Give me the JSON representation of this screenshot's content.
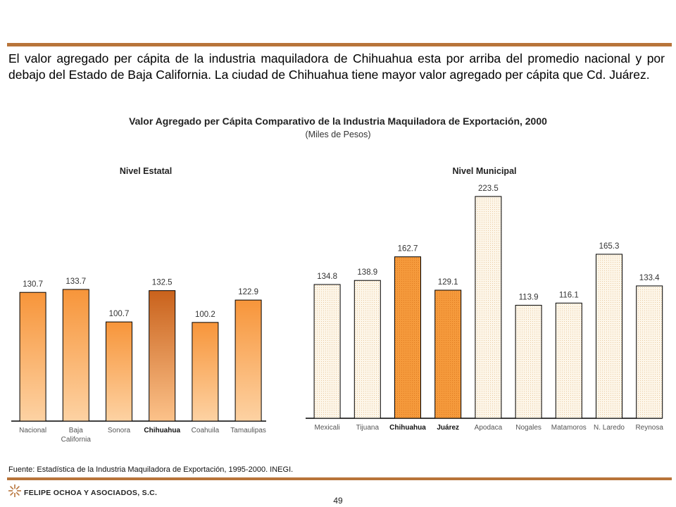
{
  "intro_text": "El valor agregado per cápita de la industria maquiladora de Chihuahua esta por arriba del promedio nacional y por debajo del Estado de Baja California. La ciudad de Chihuahua tiene mayor valor agregado per cápita que Cd. Juárez.",
  "chart_title": "Valor Agregado per Cápita Comparativo de la Industria Maquiladora de Exportación, 2000",
  "chart_subtitle": "(Miles de Pesos)",
  "source": "Fuente: Estadística de la Industria Maquiladora de Exportación, 1995-2000. INEGI.",
  "brand": "FELIPE OCHOA Y ASOCIADOS, S.C.",
  "page_number": "49",
  "colors": {
    "rule": "#b8743a",
    "bar_light": "#fcc990",
    "bar_dark": "#f59a3c",
    "bar_highlight": "#d2691e",
    "dotted_fill": "#fbf3e2"
  },
  "chart_data": [
    {
      "type": "bar",
      "title": "Nivel Estatal",
      "categories": [
        "Nacional",
        "Baja California",
        "Sonora",
        "Chihuahua",
        "Coahuila",
        "Tamaulipas"
      ],
      "category_lines": [
        [
          "Nacional"
        ],
        [
          "Baja",
          "California"
        ],
        [
          "Sonora"
        ],
        [
          "Chihuahua"
        ],
        [
          "Coahuila"
        ],
        [
          "Tamaulipas"
        ]
      ],
      "bold_categories": [
        "Chihuahua"
      ],
      "highlight": [
        "Chihuahua"
      ],
      "values": [
        130.7,
        133.7,
        100.7,
        132.5,
        100.2,
        122.9
      ],
      "value_labels": [
        "130.7",
        "133.7",
        "100.7",
        "132.5",
        "100.2",
        "122.9"
      ],
      "ylim": [
        0,
        150
      ],
      "grid": false,
      "style": "gradient"
    },
    {
      "type": "bar",
      "title": "Nivel Municipal",
      "categories": [
        "Mexicali",
        "Tijuana",
        "Chihuahua",
        "Juárez",
        "Apodaca",
        "Nogales",
        "Matamoros",
        "N. Laredo",
        "Reynosa"
      ],
      "category_lines": [
        [
          "Mexicali"
        ],
        [
          "Tijuana"
        ],
        [
          "Chihuahua"
        ],
        [
          "Juárez"
        ],
        [
          "Apodaca"
        ],
        [
          "Nogales"
        ],
        [
          "Matamoros"
        ],
        [
          "N. Laredo"
        ],
        [
          "Reynosa"
        ]
      ],
      "bold_categories": [
        "Chihuahua",
        "Juárez"
      ],
      "highlight": [
        "Chihuahua",
        "Juárez"
      ],
      "values": [
        134.8,
        138.9,
        162.7,
        129.1,
        223.5,
        113.9,
        116.1,
        165.3,
        133.4
      ],
      "value_labels": [
        "134.8",
        "138.9",
        "162.7",
        "129.1",
        "223.5",
        "113.9",
        "116.1",
        "165.3",
        "133.4"
      ],
      "ylim": [
        0,
        240
      ],
      "grid": false,
      "style": "dotted"
    }
  ]
}
